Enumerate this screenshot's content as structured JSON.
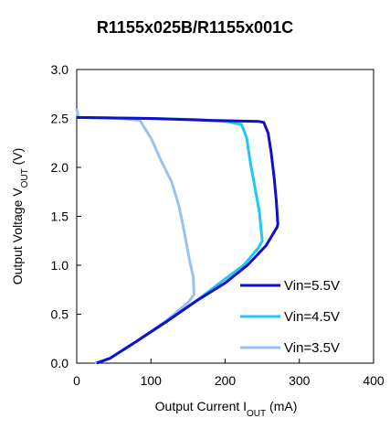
{
  "chart_data": {
    "type": "line",
    "title": "R1155x025B/R1155x001C",
    "xlabel": {
      "main": "Output Current I",
      "sub": "OUT",
      "unit": " (mA)"
    },
    "ylabel": {
      "main": "Output Voltage V",
      "sub": "OUT",
      "unit": " (V)"
    },
    "xlim": [
      0,
      400
    ],
    "ylim": [
      0,
      3.0
    ],
    "xticks": [
      0,
      100,
      200,
      300,
      400
    ],
    "yticks": [
      0.0,
      0.5,
      1.0,
      1.5,
      2.0,
      2.5,
      3.0
    ],
    "ytick_labels": [
      "0.0",
      "0.5",
      "1.0",
      "1.5",
      "2.0",
      "2.5",
      "3.0"
    ],
    "grid": false,
    "legend_position": "bottom-right",
    "series": [
      {
        "name": "Vin=5.5V",
        "color": "#1010c8",
        "points": [
          [
            0,
            2.51
          ],
          [
            100,
            2.5
          ],
          [
            180,
            2.48
          ],
          [
            245,
            2.47
          ],
          [
            252,
            2.46
          ],
          [
            258,
            2.35
          ],
          [
            262,
            2.15
          ],
          [
            266,
            1.9
          ],
          [
            269,
            1.65
          ],
          [
            271,
            1.42
          ],
          [
            270,
            1.39
          ],
          [
            255,
            1.2
          ],
          [
            230,
            1.0
          ],
          [
            200,
            0.82
          ],
          [
            160,
            0.63
          ],
          [
            120,
            0.42
          ],
          [
            80,
            0.22
          ],
          [
            45,
            0.05
          ],
          [
            27,
            0.0
          ]
        ]
      },
      {
        "name": "Vin=4.5V",
        "color": "#1ec8f0",
        "points": [
          [
            0,
            2.51
          ],
          [
            100,
            2.5
          ],
          [
            160,
            2.49
          ],
          [
            200,
            2.47
          ],
          [
            222,
            2.44
          ],
          [
            229,
            2.3
          ],
          [
            234,
            2.05
          ],
          [
            240,
            1.8
          ],
          [
            246,
            1.55
          ],
          [
            250,
            1.25
          ],
          [
            245,
            1.18
          ],
          [
            225,
            1.0
          ],
          [
            198,
            0.85
          ],
          [
            160,
            0.63
          ],
          [
            120,
            0.42
          ],
          [
            80,
            0.22
          ],
          [
            45,
            0.05
          ],
          [
            27,
            0.0
          ]
        ]
      },
      {
        "name": "Vin=3.5V",
        "color": "#99c2f0",
        "points": [
          [
            0,
            2.6
          ],
          [
            2,
            2.51
          ],
          [
            60,
            2.5
          ],
          [
            85,
            2.48
          ],
          [
            100,
            2.3
          ],
          [
            115,
            2.05
          ],
          [
            128,
            1.85
          ],
          [
            138,
            1.6
          ],
          [
            146,
            1.3
          ],
          [
            152,
            1.05
          ],
          [
            157,
            0.88
          ],
          [
            158,
            0.7
          ],
          [
            150,
            0.62
          ],
          [
            120,
            0.43
          ],
          [
            80,
            0.22
          ],
          [
            45,
            0.05
          ],
          [
            25,
            0.0
          ]
        ]
      }
    ]
  }
}
